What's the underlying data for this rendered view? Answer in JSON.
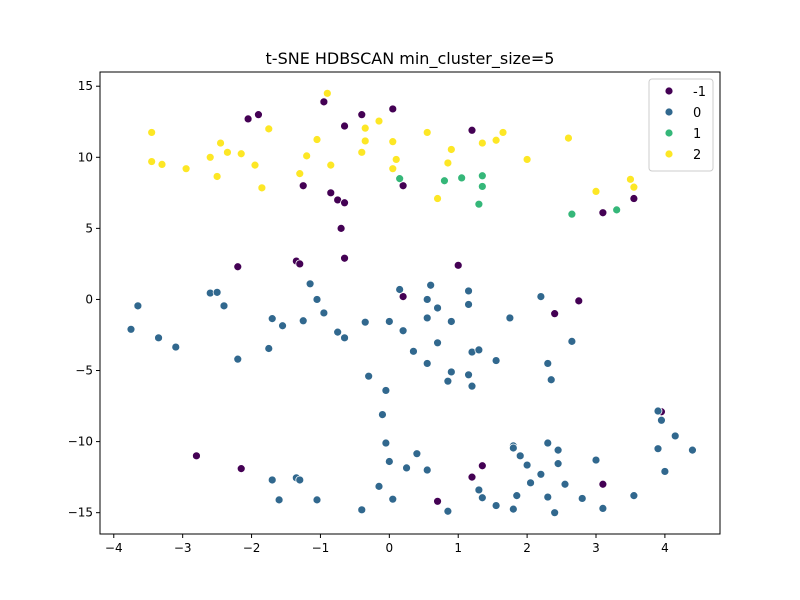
{
  "chart_data": {
    "type": "scatter",
    "title": "t-SNE HDBSCAN min_cluster_size=5",
    "xlabel": "",
    "ylabel": "",
    "xlim": [
      -4.2,
      4.8
    ],
    "ylim": [
      -16.5,
      16
    ],
    "xticks": [
      -4,
      -3,
      -2,
      -1,
      0,
      1,
      2,
      3,
      4
    ],
    "yticks": [
      -15,
      -10,
      -5,
      0,
      5,
      10,
      15
    ],
    "grid": false,
    "legend_position": "top-right",
    "series": [
      {
        "name": "-1",
        "color": "#440154",
        "points": [
          [
            -2.05,
            12.7
          ],
          [
            -1.9,
            13.0
          ],
          [
            -0.95,
            13.9
          ],
          [
            -0.4,
            13.0
          ],
          [
            0.05,
            13.4
          ],
          [
            -0.65,
            12.2
          ],
          [
            1.2,
            11.9
          ],
          [
            -1.25,
            8.0
          ],
          [
            -0.85,
            7.5
          ],
          [
            -0.75,
            7.0
          ],
          [
            -0.65,
            6.8
          ],
          [
            0.2,
            8.0
          ],
          [
            -0.7,
            5.0
          ],
          [
            -0.65,
            2.9
          ],
          [
            3.1,
            6.1
          ],
          [
            3.55,
            7.1
          ],
          [
            -2.2,
            2.3
          ],
          [
            -1.35,
            2.7
          ],
          [
            -1.3,
            2.5
          ],
          [
            1.0,
            2.4
          ],
          [
            0.2,
            0.2
          ],
          [
            2.75,
            -0.1
          ],
          [
            2.4,
            -1.0
          ],
          [
            -2.8,
            -11.0
          ],
          [
            -2.15,
            -11.9
          ],
          [
            1.35,
            -11.7
          ],
          [
            1.2,
            -12.5
          ],
          [
            0.7,
            -14.2
          ],
          [
            3.1,
            -13.0
          ],
          [
            3.95,
            -7.9
          ]
        ]
      },
      {
        "name": "0",
        "color": "#31688e",
        "points": [
          [
            -3.65,
            -0.45
          ],
          [
            -3.75,
            -2.1
          ],
          [
            -3.35,
            -2.7
          ],
          [
            -3.1,
            -3.35
          ],
          [
            -2.6,
            0.45
          ],
          [
            -2.5,
            0.5
          ],
          [
            -2.4,
            -0.45
          ],
          [
            -2.2,
            -4.2
          ],
          [
            -1.7,
            -1.35
          ],
          [
            -1.55,
            -1.85
          ],
          [
            -1.75,
            -3.45
          ],
          [
            -1.25,
            -1.5
          ],
          [
            -1.15,
            1.1
          ],
          [
            -1.05,
            0.0
          ],
          [
            -0.95,
            -0.95
          ],
          [
            -0.75,
            -2.3
          ],
          [
            -0.65,
            -2.7
          ],
          [
            -0.35,
            -1.6
          ],
          [
            -0.3,
            -5.4
          ],
          [
            0.0,
            -1.55
          ],
          [
            0.15,
            0.7
          ],
          [
            0.2,
            -2.2
          ],
          [
            0.35,
            -3.65
          ],
          [
            0.55,
            -4.5
          ],
          [
            0.55,
            -1.3
          ],
          [
            0.55,
            0.0
          ],
          [
            0.6,
            1.0
          ],
          [
            0.7,
            -0.6
          ],
          [
            0.7,
            -3.05
          ],
          [
            0.9,
            -1.55
          ],
          [
            0.85,
            -5.75
          ],
          [
            0.9,
            -5.1
          ],
          [
            1.15,
            0.6
          ],
          [
            1.15,
            -0.35
          ],
          [
            1.2,
            -3.7
          ],
          [
            1.15,
            -5.3
          ],
          [
            1.2,
            -6.1
          ],
          [
            1.3,
            -3.55
          ],
          [
            1.55,
            -4.3
          ],
          [
            1.75,
            -1.3
          ],
          [
            2.2,
            0.2
          ],
          [
            2.3,
            -4.5
          ],
          [
            2.35,
            -5.65
          ],
          [
            2.65,
            -2.95
          ],
          [
            -0.05,
            -6.4
          ],
          [
            -0.1,
            -8.1
          ],
          [
            -0.05,
            -10.1
          ],
          [
            0.0,
            -11.4
          ],
          [
            -0.15,
            -13.15
          ],
          [
            0.05,
            -14.05
          ],
          [
            -0.4,
            -14.8
          ],
          [
            0.25,
            -11.85
          ],
          [
            0.4,
            -10.85
          ],
          [
            0.55,
            -12.0
          ],
          [
            0.85,
            -14.9
          ],
          [
            -1.35,
            -12.55
          ],
          [
            -1.3,
            -12.7
          ],
          [
            -1.7,
            -12.7
          ],
          [
            -1.6,
            -14.1
          ],
          [
            -1.05,
            -14.1
          ],
          [
            1.3,
            -13.4
          ],
          [
            1.35,
            -13.95
          ],
          [
            1.55,
            -14.5
          ],
          [
            1.8,
            -10.3
          ],
          [
            1.8,
            -10.45
          ],
          [
            1.9,
            -11.0
          ],
          [
            2.0,
            -11.65
          ],
          [
            2.05,
            -12.9
          ],
          [
            1.85,
            -13.8
          ],
          [
            1.8,
            -14.75
          ],
          [
            2.2,
            -12.3
          ],
          [
            2.3,
            -10.1
          ],
          [
            2.45,
            -10.6
          ],
          [
            2.45,
            -11.55
          ],
          [
            2.3,
            -13.9
          ],
          [
            2.4,
            -15.0
          ],
          [
            2.55,
            -13.0
          ],
          [
            2.8,
            -14.0
          ],
          [
            3.0,
            -11.3
          ],
          [
            3.1,
            -14.7
          ],
          [
            3.9,
            -7.85
          ],
          [
            3.95,
            -8.5
          ],
          [
            3.9,
            -10.5
          ],
          [
            4.15,
            -9.6
          ],
          [
            4.0,
            -12.1
          ],
          [
            4.4,
            -10.6
          ],
          [
            3.55,
            -13.8
          ]
        ]
      },
      {
        "name": "1",
        "color": "#35b779",
        "points": [
          [
            0.15,
            8.5
          ],
          [
            0.8,
            8.35
          ],
          [
            1.05,
            8.55
          ],
          [
            1.35,
            8.7
          ],
          [
            1.35,
            7.95
          ],
          [
            1.3,
            6.7
          ],
          [
            2.65,
            6.0
          ],
          [
            3.3,
            6.3
          ]
        ]
      },
      {
        "name": "2",
        "color": "#fde725",
        "points": [
          [
            -3.45,
            11.75
          ],
          [
            -3.45,
            9.7
          ],
          [
            -3.3,
            9.5
          ],
          [
            -2.95,
            9.2
          ],
          [
            -2.6,
            10.0
          ],
          [
            -2.5,
            8.65
          ],
          [
            -2.45,
            11.0
          ],
          [
            -2.35,
            10.35
          ],
          [
            -2.15,
            10.25
          ],
          [
            -1.95,
            9.45
          ],
          [
            -1.85,
            7.85
          ],
          [
            -1.75,
            12.0
          ],
          [
            -1.3,
            8.85
          ],
          [
            -1.2,
            10.1
          ],
          [
            -1.05,
            11.25
          ],
          [
            -0.85,
            9.45
          ],
          [
            -0.9,
            14.5
          ],
          [
            -0.4,
            10.35
          ],
          [
            -0.35,
            11.15
          ],
          [
            -0.35,
            12.05
          ],
          [
            -0.15,
            12.55
          ],
          [
            0.05,
            11.1
          ],
          [
            0.05,
            9.2
          ],
          [
            0.1,
            9.85
          ],
          [
            0.55,
            11.75
          ],
          [
            0.85,
            9.6
          ],
          [
            0.9,
            10.55
          ],
          [
            0.7,
            7.1
          ],
          [
            1.35,
            11.0
          ],
          [
            1.55,
            11.2
          ],
          [
            1.65,
            11.75
          ],
          [
            2.0,
            9.85
          ],
          [
            2.6,
            11.35
          ],
          [
            3.0,
            7.6
          ],
          [
            3.5,
            8.45
          ],
          [
            3.55,
            7.9
          ]
        ]
      }
    ]
  }
}
